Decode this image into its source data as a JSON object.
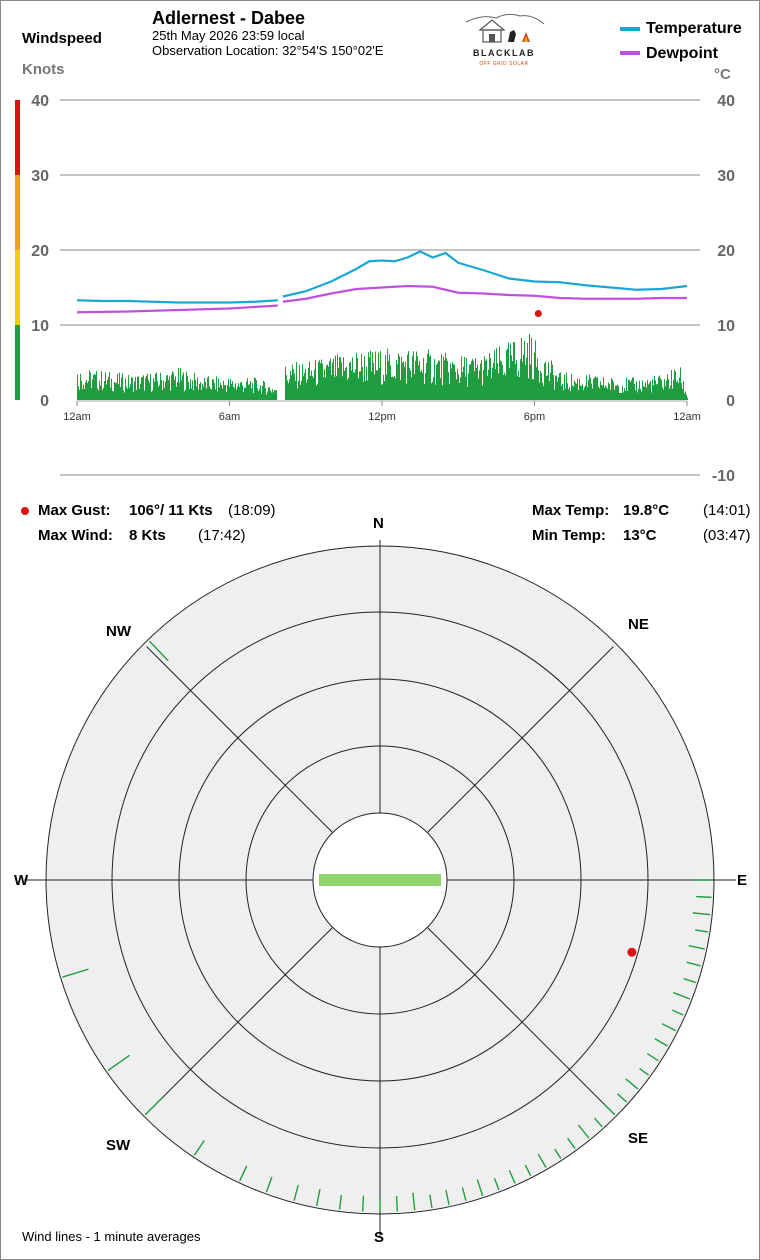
{
  "station": {
    "title": "Adlernest - Dabee",
    "datetime": "25th May 2026  23:59 local",
    "location": "Observation Location: 32°54'S 150°02'E"
  },
  "logo": {
    "brand": "BLACKLAB",
    "tagline": "OFF GRID SOLAR"
  },
  "legend": {
    "temperature": "Temperature",
    "dewpoint": "Dewpoint",
    "colors": {
      "temperature": "#1aa6d6",
      "dewpoint": "#c050e0"
    }
  },
  "left_axis": {
    "title": "Windspeed",
    "unit": "Knots",
    "ticks": [
      "40",
      "30",
      "20",
      "10",
      "0"
    ]
  },
  "right_axis": {
    "unit": "°C",
    "ticks": [
      "40",
      "30",
      "20",
      "10",
      "0",
      "-10"
    ]
  },
  "x_ticks": [
    "12am",
    "6am",
    "12pm",
    "6pm",
    "12am"
  ],
  "stats": {
    "max_gust_label": "Max Gust:",
    "max_gust_value": "106°/ 11 Kts",
    "max_gust_time": "(18:09)",
    "max_wind_label": "Max Wind:",
    "max_wind_value": "8 Kts",
    "max_wind_time": "(17:42)",
    "max_temp_label": "Max Temp:",
    "max_temp_value": "19.8°C",
    "max_temp_time": "(14:01)",
    "min_temp_label": "Min Temp:",
    "min_temp_value": "13°C",
    "min_temp_time": "(03:47)"
  },
  "compass": {
    "n": "N",
    "ne": "NE",
    "e": "E",
    "se": "SE",
    "s": "S",
    "sw": "SW",
    "w": "W",
    "nw": "NW"
  },
  "footnote": "Wind lines - 1 minute averages",
  "chart_data": [
    {
      "type": "line",
      "x_unit": "hour of day",
      "xlim": [
        0,
        24
      ],
      "y_left_lim": [
        0,
        40
      ],
      "y_right_lim": [
        -10,
        40
      ],
      "grid": true,
      "legend_position": "top-right",
      "wind_color_scale": [
        {
          "from": 0,
          "to": 10,
          "color": "#1e9e3e"
        },
        {
          "from": 10,
          "to": 20,
          "color": "#f5d000"
        },
        {
          "from": 20,
          "to": 30,
          "color": "#f0a020"
        },
        {
          "from": 30,
          "to": 40,
          "color": "#e01010"
        }
      ],
      "series": [
        {
          "name": "Temperature",
          "axis": "right",
          "x": [
            0,
            1,
            2,
            3,
            4,
            5,
            6,
            7,
            7.9,
            8.1,
            9,
            10,
            11,
            11.5,
            12,
            12.5,
            13,
            13.5,
            14,
            14.5,
            15,
            15.5,
            16,
            17,
            18,
            19,
            20,
            21,
            22,
            23,
            24
          ],
          "y": [
            13.3,
            13.2,
            13.2,
            13.1,
            13.0,
            13.0,
            13.0,
            13.1,
            13.3,
            13.8,
            14.5,
            15.8,
            17.5,
            18.5,
            18.6,
            18.5,
            19.0,
            19.8,
            19.0,
            19.6,
            18.3,
            17.8,
            17.3,
            16.2,
            15.8,
            15.7,
            15.3,
            15.0,
            14.7,
            14.8,
            15.2
          ]
        },
        {
          "name": "Dewpoint",
          "axis": "right",
          "x": [
            0,
            2,
            4,
            6,
            7.9,
            8.1,
            9,
            10,
            11,
            12,
            13,
            14,
            15,
            16,
            17,
            18,
            19,
            20,
            21,
            22,
            23,
            24
          ],
          "y": [
            11.7,
            11.8,
            12.0,
            12.2,
            12.6,
            13.1,
            13.5,
            14.2,
            14.8,
            15.0,
            15.2,
            15.1,
            14.3,
            14.2,
            14.0,
            13.9,
            13.6,
            13.5,
            13.5,
            13.5,
            13.6,
            13.6
          ]
        },
        {
          "name": "Wind",
          "axis": "left",
          "x": [
            0,
            1,
            2,
            3,
            4,
            5,
            6,
            7,
            7.8,
            8.2,
            9,
            10,
            11,
            12,
            13,
            14,
            15,
            16,
            17,
            17.7,
            18,
            19,
            20,
            21,
            22,
            23,
            23.7,
            24
          ],
          "y": [
            3.5,
            3.2,
            2.8,
            3.0,
            3.5,
            2.6,
            2.5,
            2.4,
            1.6,
            4.0,
            4.2,
            4.8,
            5.5,
            5.5,
            5.8,
            5.4,
            4.8,
            5.0,
            6.3,
            7.8,
            6.5,
            3.0,
            2.8,
            2.5,
            2.4,
            2.8,
            3.8,
            0.5
          ]
        },
        {
          "name": "Max Gust",
          "axis": "left",
          "type": "scatter",
          "x": [
            18.15
          ],
          "y": [
            11
          ]
        }
      ]
    },
    {
      "type": "scatter",
      "description_units": "wind direction (degrees) vs speed (knots)",
      "r_ring_step_knots": 2,
      "r_max_knots": 10,
      "segments": [
        {
          "deg": 90,
          "speed": 7.8
        },
        {
          "deg": 93,
          "speed": 7.0
        },
        {
          "deg": 96,
          "speed": 7.5
        },
        {
          "deg": 99,
          "speed": 6.4
        },
        {
          "deg": 102,
          "speed": 7.2
        },
        {
          "deg": 105,
          "speed": 6.8
        },
        {
          "deg": 108,
          "speed": 6.4
        },
        {
          "deg": 111,
          "speed": 7.6
        },
        {
          "deg": 114,
          "speed": 6.2
        },
        {
          "deg": 117,
          "speed": 7.0
        },
        {
          "deg": 120,
          "speed": 6.8
        },
        {
          "deg": 123,
          "speed": 6.5
        },
        {
          "deg": 126,
          "speed": 6.0
        },
        {
          "deg": 129,
          "speed": 7.1
        },
        {
          "deg": 132,
          "speed": 6.3
        },
        {
          "deg": 135,
          "speed": 6.9
        },
        {
          "deg": 138,
          "speed": 6.1
        },
        {
          "deg": 141,
          "speed": 7.3
        },
        {
          "deg": 144,
          "speed": 6.4
        },
        {
          "deg": 147,
          "speed": 6.0
        },
        {
          "deg": 150,
          "speed": 7.0
        },
        {
          "deg": 153,
          "speed": 6.2
        },
        {
          "deg": 156,
          "speed": 6.7
        },
        {
          "deg": 159,
          "speed": 6.3
        },
        {
          "deg": 162,
          "speed": 7.4
        },
        {
          "deg": 165,
          "speed": 6.6
        },
        {
          "deg": 168,
          "speed": 6.9
        },
        {
          "deg": 171,
          "speed": 6.5
        },
        {
          "deg": 174,
          "speed": 7.5
        },
        {
          "deg": 177,
          "speed": 7.0
        },
        {
          "deg": 180,
          "speed": 6.6
        },
        {
          "deg": 183,
          "speed": 7.1
        },
        {
          "deg": 187,
          "speed": 6.8
        },
        {
          "deg": 191,
          "speed": 7.4
        },
        {
          "deg": 195,
          "speed": 7.2
        },
        {
          "deg": 200,
          "speed": 7.1
        },
        {
          "deg": 205,
          "speed": 7.3
        },
        {
          "deg": 214,
          "speed": 7.6
        },
        {
          "deg": 225,
          "speed": 9.1
        },
        {
          "deg": 235,
          "speed": 9.6
        },
        {
          "deg": 253,
          "speed": 9.8
        },
        {
          "deg": 316,
          "speed": 9.8
        }
      ],
      "gust": {
        "deg": 106,
        "speed": 11
      },
      "calm_percent_bar": true
    }
  ]
}
